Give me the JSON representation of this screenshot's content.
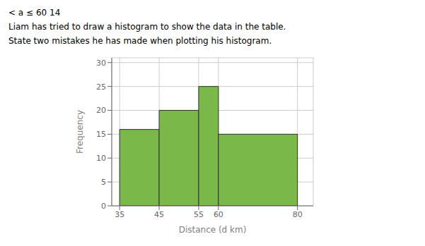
{
  "chart_data": {
    "type": "histogram",
    "annotations": [
      "< a ≤ 60    14",
      "Liam has tried to draw a histogram to show the data in the table.",
      "State two mistakes he has made when plotting his histogram."
    ],
    "xlabel": "Distance (d km)",
    "ylabel": "Frequency",
    "bins": [
      35,
      45,
      55,
      60,
      80
    ],
    "values": [
      16,
      20,
      25,
      15
    ],
    "color": "#7ab84a",
    "xlim": [
      33,
      84
    ],
    "ylim": [
      0,
      31
    ],
    "xticks": [
      35,
      45,
      55,
      60,
      80
    ],
    "yticks": [
      0,
      5,
      10,
      15,
      20,
      25,
      30
    ],
    "grid": true
  }
}
